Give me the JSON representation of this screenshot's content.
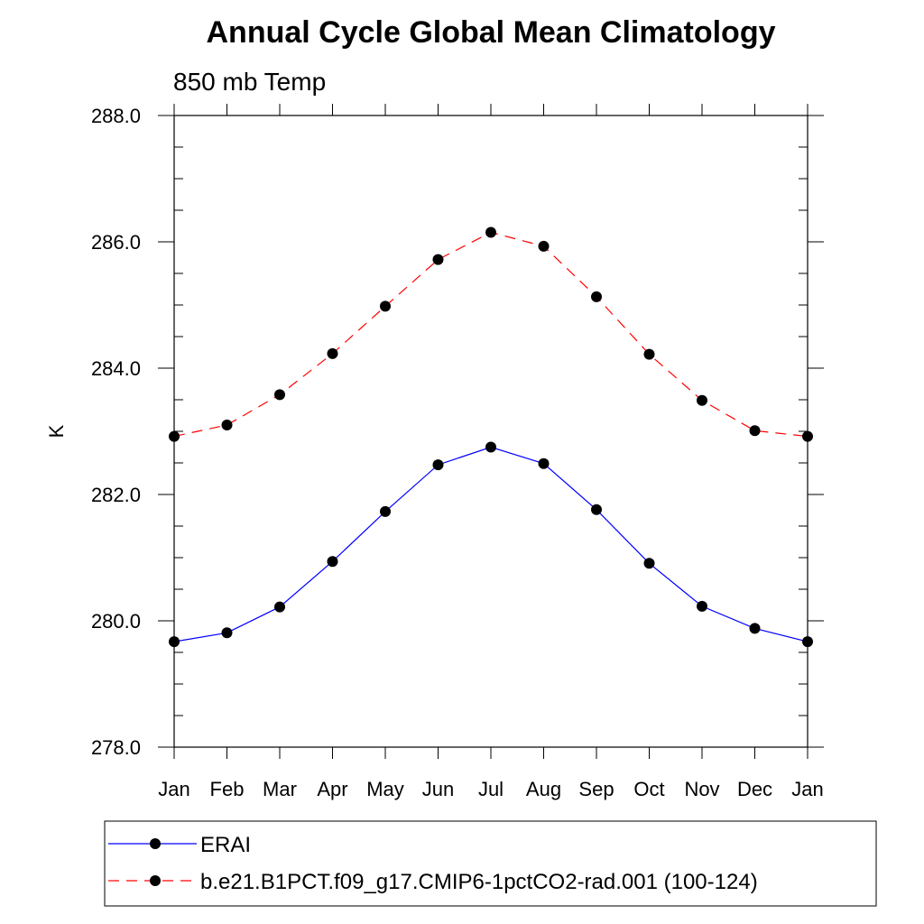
{
  "chart_data": {
    "type": "line",
    "title": "Annual Cycle Global Mean Climatology",
    "subtitle": "850 mb Temp",
    "xlabel": "",
    "ylabel": "K",
    "categories": [
      "Jan",
      "Feb",
      "Mar",
      "Apr",
      "May",
      "Jun",
      "Jul",
      "Aug",
      "Sep",
      "Oct",
      "Nov",
      "Dec",
      "Jan"
    ],
    "ylim": [
      278.0,
      288.0
    ],
    "y_ticks": [
      "278.0",
      "280.0",
      "282.0",
      "284.0",
      "286.0",
      "288.0"
    ],
    "series": [
      {
        "name": "ERAI",
        "color": "#0000ff",
        "dash": "solid",
        "values": [
          279.67,
          279.81,
          280.22,
          280.94,
          281.73,
          282.47,
          282.75,
          282.49,
          281.76,
          280.91,
          280.23,
          279.88,
          279.67
        ]
      },
      {
        "name": "b.e21.B1PCT.f09_g17.CMIP6-1pctCO2-rad.001 (100-124)",
        "color": "#ff0000",
        "dash": "dashed",
        "values": [
          282.92,
          283.1,
          283.58,
          284.23,
          284.98,
          285.72,
          286.15,
          285.93,
          285.13,
          284.22,
          283.49,
          283.01,
          282.92
        ]
      }
    ]
  }
}
